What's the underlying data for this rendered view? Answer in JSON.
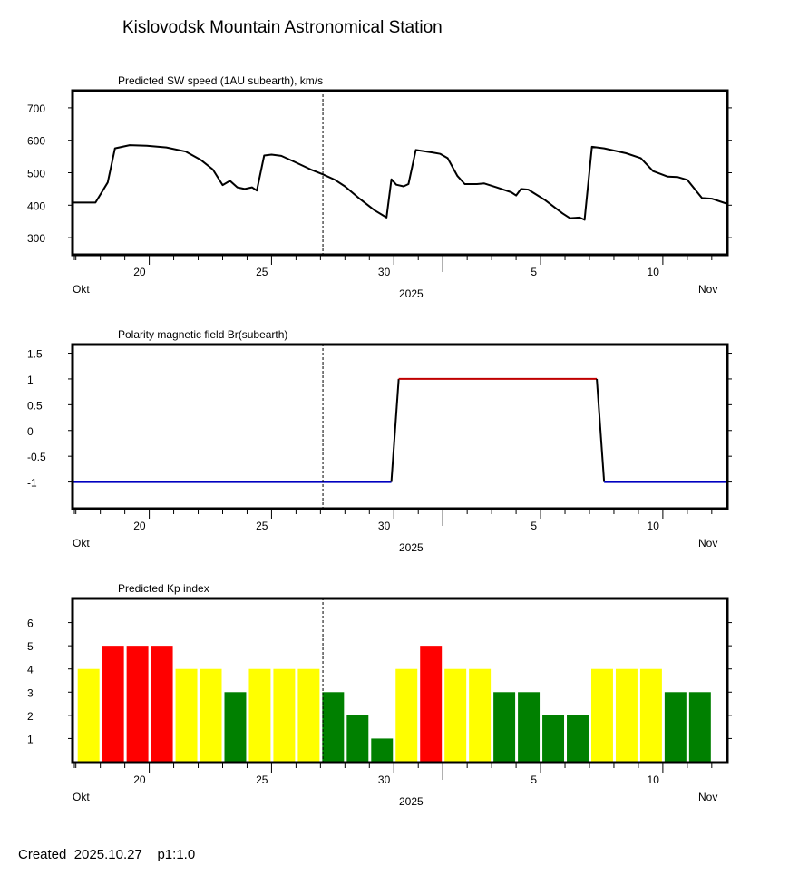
{
  "page": {
    "title": "Kislovodsk Mountain Astronomical Station",
    "footer": {
      "created_label": "Created",
      "created_date": "2025.10.27",
      "page_ref": "p1:1.0"
    }
  },
  "time_axis": {
    "start_day": 16.9,
    "end_day": 43.6,
    "now_day": 27.1,
    "month_boundary_day": 32,
    "tick_labels": [
      {
        "day": 20,
        "label": "20"
      },
      {
        "day": 25,
        "label": "25"
      },
      {
        "day": 30,
        "label": "30"
      },
      {
        "day": 36,
        "label": "5"
      },
      {
        "day": 41,
        "label": "10"
      }
    ],
    "month_left": "Okt",
    "month_right": "Nov",
    "year": "2025",
    "note": "day numbers counted from Oct 1 = 1 (Nov 1 = 32)"
  },
  "chart_data": [
    {
      "type": "line",
      "title": "Predicted SW speed (1AU subearth), km/s",
      "xlabel": "",
      "ylabel": "km/s",
      "ylim": [
        250,
        750
      ],
      "yticks": [
        300,
        400,
        500,
        600,
        700
      ],
      "ytick_labels": [
        "300",
        "400",
        "500",
        "600",
        "700"
      ],
      "line_color": "#000000",
      "x": [
        16.9,
        17.8,
        18.3,
        18.6,
        19.2,
        19.9,
        20.7,
        21.5,
        22.1,
        22.6,
        23.0,
        23.3,
        23.6,
        23.9,
        24.2,
        24.4,
        24.7,
        25.0,
        25.4,
        25.9,
        26.6,
        27.1,
        27.6,
        28.0,
        28.6,
        29.2,
        29.7,
        29.9,
        30.1,
        30.4,
        30.6,
        30.9,
        31.6,
        31.9,
        32.2,
        32.6,
        32.9,
        33.4,
        33.7,
        34.2,
        34.8,
        35.0,
        35.2,
        35.5,
        36.2,
        36.9,
        37.2,
        37.6,
        37.8,
        38.1,
        38.6,
        39.5,
        40.1,
        40.6,
        41.2,
        41.6,
        42.0,
        42.6,
        43.0,
        43.6
      ],
      "y": [
        408,
        408,
        470,
        575,
        585,
        583,
        578,
        565,
        540,
        510,
        462,
        475,
        455,
        450,
        455,
        445,
        553,
        556,
        552,
        535,
        510,
        495,
        478,
        458,
        420,
        385,
        362,
        480,
        463,
        458,
        465,
        570,
        562,
        558,
        545,
        490,
        465,
        465,
        467,
        455,
        440,
        430,
        450,
        448,
        415,
        375,
        360,
        362,
        355,
        580,
        575,
        560,
        545,
        505,
        488,
        487,
        478,
        422,
        420,
        405
      ]
    },
    {
      "type": "line",
      "title": "Polarity magnetic field  Br(subearth)",
      "xlabel": "",
      "ylabel": "",
      "ylim": [
        -1.5,
        1.65
      ],
      "yticks": [
        -1,
        -0.5,
        0,
        0.5,
        1,
        1.5
      ],
      "ytick_labels": [
        "-1",
        "-0.5",
        "0",
        "0.5",
        "1",
        "1.5"
      ],
      "colors": {
        "negative": "#0000c0",
        "positive": "#c00000",
        "transition": "#000000"
      },
      "x": [
        16.9,
        29.9,
        30.2,
        38.3,
        38.6,
        43.6
      ],
      "y": [
        -1,
        -1,
        1,
        1,
        -1,
        -1
      ]
    },
    {
      "type": "bar",
      "title": "Predicted Kp index",
      "xlabel": "",
      "ylabel": "",
      "ylim": [
        0,
        7
      ],
      "yticks": [
        1,
        2,
        3,
        4,
        5,
        6
      ],
      "ytick_labels": [
        "1",
        "2",
        "3",
        "4",
        "5",
        "6"
      ],
      "colors": {
        "low": "#008000",
        "mid": "#ffff00",
        "high": "#ff0000"
      },
      "bar_start_day": 17.0,
      "values": [
        4,
        5,
        5,
        5,
        4,
        4,
        3,
        4,
        4,
        4,
        3,
        2,
        1,
        4,
        5,
        4,
        4,
        3,
        3,
        2,
        2,
        4,
        4,
        4,
        3,
        3
      ]
    }
  ]
}
